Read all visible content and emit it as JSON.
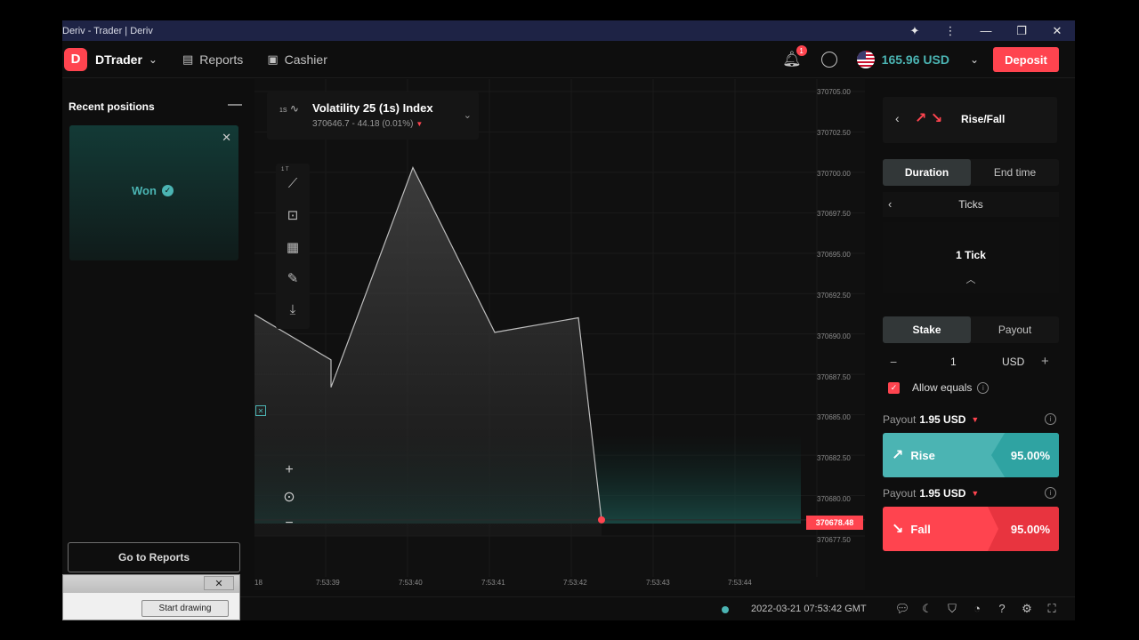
{
  "window": {
    "title": "Deriv - Trader | Deriv"
  },
  "header": {
    "logo_letter": "D",
    "app_name": "DTrader",
    "nav": [
      {
        "label": "Reports"
      },
      {
        "label": "Cashier"
      }
    ],
    "notification_count": "1",
    "balance": "165.96 USD",
    "deposit_label": "Deposit"
  },
  "recent_positions": {
    "title": "Recent positions",
    "status": "Won",
    "go_reports_label": "Go to Reports"
  },
  "draw_window": {
    "button_label": "Start drawing",
    "close_label": "✕"
  },
  "symbol": {
    "name": "Volatility 25 (1s) Index",
    "quote": "370646.7 - 44.18 (0.01%)",
    "icon_text": "1S"
  },
  "toolbar": {
    "chart_type_label": "1 T"
  },
  "chart_data": {
    "type": "area",
    "x": [
      "7:53:38",
      "7:53:39",
      "7:53:39.5",
      "7:53:40",
      "7:53:41",
      "7:53:42",
      "7:53:42.2"
    ],
    "series": [
      {
        "values": [
          370691.2,
          370688.4,
          370686.7,
          370700.3,
          370690.1,
          370691.0,
          370678.5
        ]
      }
    ],
    "ylim": [
      370677.5,
      370705.0
    ],
    "price_ticks": [
      "370705.00",
      "370702.50",
      "370700.00",
      "370697.50",
      "370695.00",
      "370692.50",
      "370690.00",
      "370687.50",
      "370685.00",
      "370682.50",
      "370680.00",
      "370677.50"
    ],
    "time_ticks": [
      "18",
      "7:53:39",
      "7:53:40",
      "7:53:41",
      "7:53:42",
      "7:53:43",
      "7:53:44"
    ],
    "current_price": "370678.48",
    "accent_color": "#4bb4b3",
    "spot_color": "#ff444f"
  },
  "trade": {
    "contract_type": "Rise/Fall",
    "duration_tabs": [
      "Duration",
      "End time"
    ],
    "duration_unit": "Ticks",
    "duration_value": "1 Tick",
    "amount_tabs": [
      "Stake",
      "Payout"
    ],
    "stake_value": "1",
    "currency": "USD",
    "allow_equals_label": "Allow equals",
    "payout_label": "Payout",
    "rise": {
      "payout": "1.95 USD",
      "label": "Rise",
      "percent": "95.00%"
    },
    "fall": {
      "payout": "1.95 USD",
      "label": "Fall",
      "percent": "95.00%"
    }
  },
  "footer": {
    "datetime": "2022-03-21 07:53:42 GMT"
  }
}
